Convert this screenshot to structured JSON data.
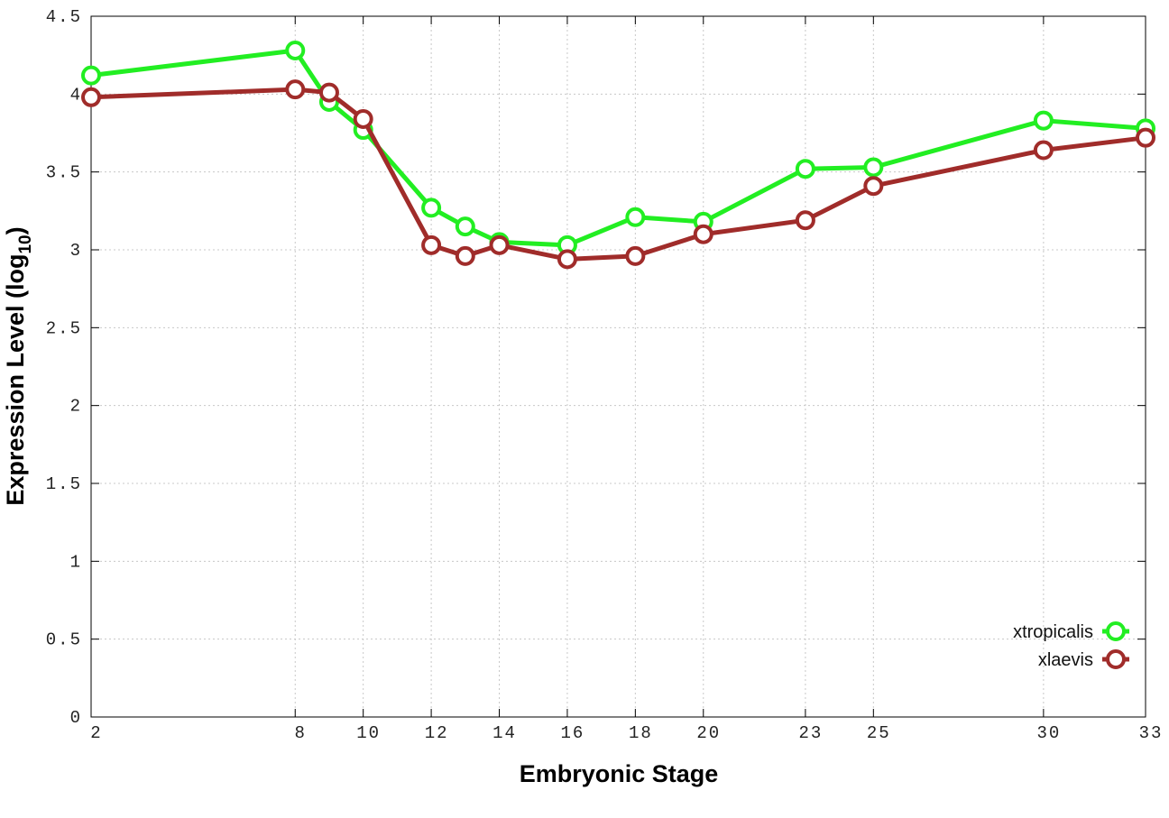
{
  "chart_data": {
    "type": "line",
    "x_label": "Embryonic Stage",
    "y_label": [
      "Expression Level (log",
      "10",
      ")"
    ],
    "x": [
      2,
      8,
      9,
      10,
      12,
      13,
      14,
      16,
      18,
      20,
      23,
      25,
      30,
      33
    ],
    "series": [
      {
        "name": "xtropicalis",
        "color": "#22ee22",
        "values": [
          4.12,
          4.28,
          3.95,
          3.77,
          3.27,
          3.15,
          3.05,
          3.03,
          3.21,
          3.18,
          3.52,
          3.53,
          3.83,
          3.78
        ]
      },
      {
        "name": "xlaevis",
        "color": "#a02c2a",
        "values": [
          3.98,
          4.03,
          4.01,
          3.84,
          3.03,
          2.96,
          3.03,
          2.94,
          2.96,
          3.1,
          3.19,
          3.41,
          3.64,
          3.72
        ]
      }
    ],
    "xlim": [
      2,
      33
    ],
    "xticks": [
      2,
      8,
      10,
      12,
      14,
      16,
      18,
      20,
      23,
      25,
      30,
      33
    ],
    "ylim": [
      0,
      4.5
    ],
    "yticks": [
      0,
      0.5,
      1,
      1.5,
      2,
      2.5,
      3,
      3.5,
      4,
      4.5
    ],
    "grid": true,
    "legend": "lower right"
  }
}
